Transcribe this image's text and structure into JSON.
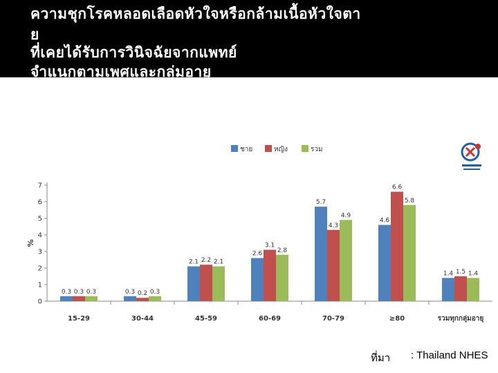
{
  "title": {
    "line1": "ความชุกโรคหลอดเลือดหัวใจหรือกล้ามเนื้อหัวใจตา",
    "line2": "ย",
    "line3": "ที่เคยได้รับการวินิจฉัยจากแพทย์",
    "line4": "จำแนกตามเพศและกลุ่มอายุ"
  },
  "source": {
    "label": "ที่มา",
    "text": ": Thailand NHES"
  },
  "logo": {
    "icon": "nhes-logo-icon"
  },
  "chart_data": {
    "type": "bar",
    "categories": [
      "15-29",
      "30-44",
      "45-59",
      "60-69",
      "70-79",
      "≥80",
      "รวมทุกกลุ่มอายุ"
    ],
    "series": [
      {
        "name": "ชาย",
        "color": "#4f81bd",
        "values": [
          0.3,
          0.3,
          2.1,
          2.6,
          5.7,
          4.6,
          1.4
        ]
      },
      {
        "name": "หญิง",
        "color": "#c0504d",
        "values": [
          0.3,
          0.2,
          2.2,
          3.1,
          4.3,
          6.6,
          1.5
        ]
      },
      {
        "name": "รวม",
        "color": "#9bbb59",
        "values": [
          0.3,
          0.3,
          2.1,
          2.8,
          4.9,
          5.8,
          1.4
        ]
      }
    ],
    "ylabel": "%",
    "ylim": [
      0,
      7
    ],
    "yticks": [
      0,
      1,
      2,
      3,
      4,
      5,
      6,
      7
    ],
    "legend": "top-center",
    "grid": false
  }
}
